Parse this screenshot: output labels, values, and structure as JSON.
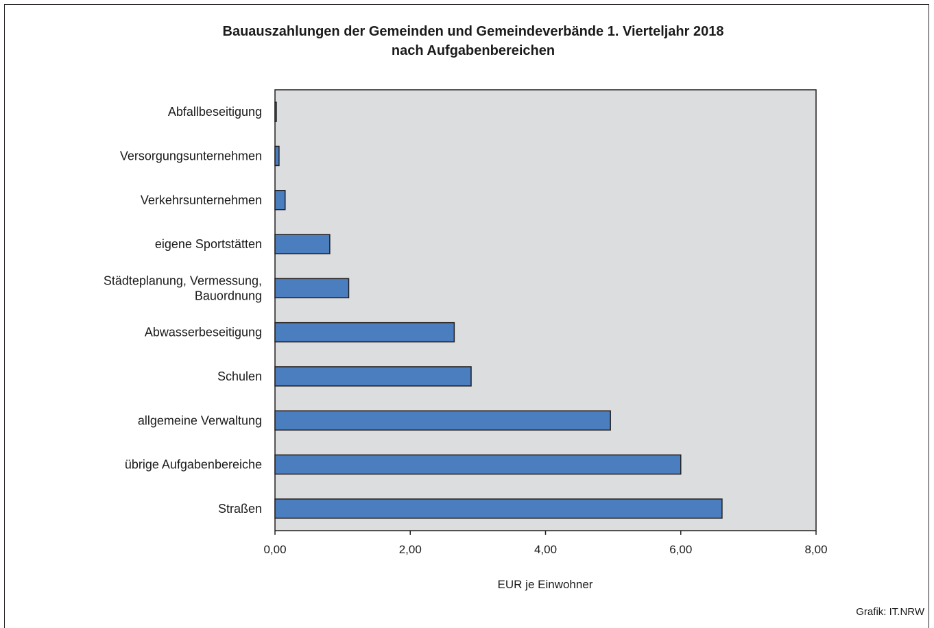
{
  "title_line1": "Bauauszahlungen der Gemeinden und Gemeindeverbände 1. Vierteljahr 2018",
  "title_line2": "nach Aufgabenbereichen",
  "credit": "Grafik: IT.NRW",
  "colors": {
    "bar": "#4a7ebf",
    "plot_bg": "#dcdddf",
    "stroke": "#231f20"
  },
  "chart_data": {
    "type": "bar",
    "orientation": "horizontal",
    "categories": [
      "Abfallbeseitigung",
      "Versorgungsunternehmen",
      "Verkehrsunternehmen",
      "eigene Sportstätten",
      "Städteplanung, Vermessung, Bauordnung",
      "Abwasserbeseitigung",
      "Schulen",
      "allgemeine Verwaltung",
      "übrige Aufgabenbereiche",
      "Straßen"
    ],
    "category_lines": [
      [
        "Abfallbeseitigung"
      ],
      [
        "Versorgungsunternehmen"
      ],
      [
        "Verkehrsunternehmen"
      ],
      [
        "eigene Sportstätten"
      ],
      [
        "Städteplanung, Vermessung,",
        "Bauordnung"
      ],
      [
        "Abwasserbeseitigung"
      ],
      [
        "Schulen"
      ],
      [
        "allgemeine Verwaltung"
      ],
      [
        "übrige Aufgabenbereiche"
      ],
      [
        "Straßen"
      ]
    ],
    "values": [
      0.02,
      0.06,
      0.15,
      0.81,
      1.09,
      2.65,
      2.9,
      4.96,
      6.0,
      6.61
    ],
    "xlabel": "EUR je Einwohner",
    "ylabel": "",
    "xlim": [
      0,
      8
    ],
    "xticks": [
      0,
      2,
      4,
      6,
      8
    ],
    "xtick_labels": [
      "0,00",
      "2,00",
      "4,00",
      "6,00",
      "8,00"
    ],
    "grid": false
  }
}
